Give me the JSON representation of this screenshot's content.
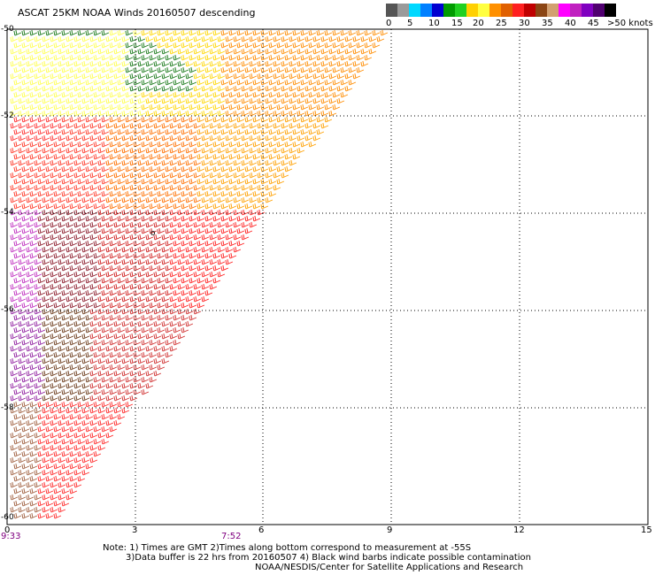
{
  "title": "ASCAT 25KM NOAA Winds 20160507 descending",
  "legend": {
    "colors": [
      "#555555",
      "#9a9a9a",
      "#00d8ff",
      "#0080ff",
      "#0000d0",
      "#009b00",
      "#20d020",
      "#ffd000",
      "#ffff40",
      "#ff9000",
      "#e06000",
      "#ff2020",
      "#c00000",
      "#8b4513",
      "#d2a070",
      "#ff00ff",
      "#c020c0",
      "#8000c0",
      "#500070",
      "#000000"
    ],
    "labels": [
      "0",
      "5",
      "10",
      "15",
      "20",
      "25",
      "30",
      "35",
      "40",
      "45",
      ">50 knots"
    ]
  },
  "axes": {
    "x_ticks": [
      "0",
      "3",
      "6",
      "9",
      "12",
      "15"
    ],
    "y_ticks": [
      "-50",
      "-52",
      "-54",
      "-56",
      "-58",
      "-60"
    ],
    "times": [
      "9:33",
      "7:52"
    ],
    "time_color": "#800080"
  },
  "notes": [
    "Note: 1) Times are GMT 2)Times along bottom correspond to measurement at -55S",
    "3)Data buffer is 22 hrs from 20160507 4) Black wind barbs indicate possible contamination",
    "NOAA/NESDIS/Center for Satellite Applications and Research"
  ]
}
